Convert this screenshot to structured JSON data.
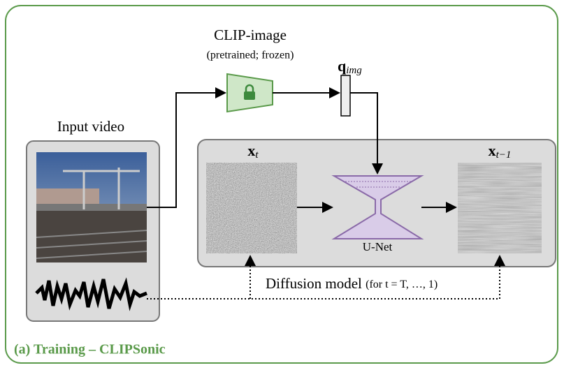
{
  "clip": {
    "title": "CLIP-image",
    "subtitle": "(pretrained; frozen)"
  },
  "embedding": {
    "base": "q",
    "sub": "img"
  },
  "input": {
    "label": "Input video"
  },
  "noisy": {
    "base": "x",
    "sub": "t"
  },
  "denoised": {
    "base": "x",
    "sub": "t−1"
  },
  "unet": {
    "label": "U-Net"
  },
  "diffusion": {
    "label": "Diffusion model",
    "note": "(for t = T, …, 1)"
  },
  "caption": "(a) Training – CLIPSonic"
}
